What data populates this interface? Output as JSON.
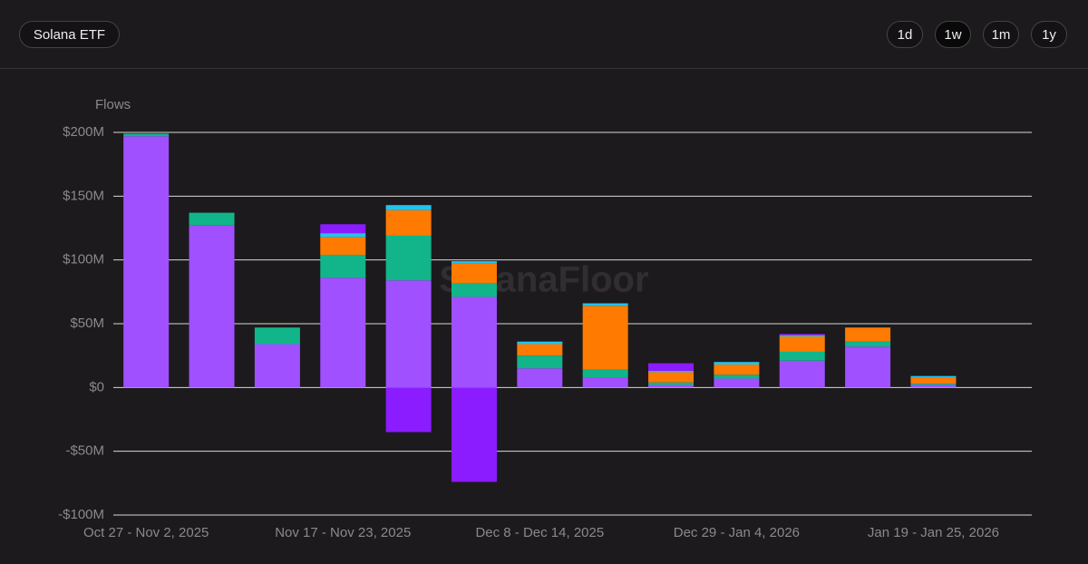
{
  "header": {
    "title": "Solana ETF",
    "ranges": [
      "1d",
      "1w",
      "1m",
      "1y"
    ]
  },
  "chart_data": {
    "type": "bar",
    "stacked": true,
    "ylabel": "Flows",
    "watermark": "SolanaFloor",
    "categories": [
      "Oct 27 - Nov 2, 2025",
      null,
      null,
      "Nov 17 - Nov 23, 2025",
      null,
      null,
      "Dec 8 - Dec 14, 2025",
      null,
      null,
      "Dec 29 - Jan 4, 2026",
      null,
      null,
      "Jan 19 - Jan 25, 2026",
      null
    ],
    "series": [
      {
        "color": "#a050ff",
        "values": [
          197,
          127,
          34,
          86,
          84,
          71,
          15,
          8,
          2,
          7,
          21,
          32,
          2,
          0
        ]
      },
      {
        "color": "#12b589",
        "values": [
          2,
          10,
          13,
          18,
          35,
          11,
          10,
          6,
          2,
          3,
          7,
          4,
          1,
          0
        ]
      },
      {
        "color": "#ff7a00",
        "values": [
          0,
          0,
          0,
          14,
          20,
          15,
          9,
          50,
          8,
          8,
          12,
          11,
          5,
          0
        ]
      },
      {
        "color": "#1ec4f2",
        "values": [
          0,
          0,
          0,
          3,
          4,
          2,
          2,
          2,
          1,
          2,
          1,
          0,
          1,
          0
        ]
      },
      {
        "color": "#8a1cff",
        "values": [
          0,
          0,
          0,
          7,
          -35,
          -74,
          0,
          0,
          6,
          0,
          1,
          0,
          0,
          0
        ]
      }
    ],
    "ylim": [
      -100,
      200
    ],
    "yticks": [
      {
        "value": -100,
        "label": "-$100M"
      },
      {
        "value": -50,
        "label": "-$50M"
      },
      {
        "value": 0,
        "label": "$0"
      },
      {
        "value": 50,
        "label": "$50M"
      },
      {
        "value": 100,
        "label": "$100M"
      },
      {
        "value": 150,
        "label": "$150M"
      },
      {
        "value": 200,
        "label": "$200M"
      }
    ],
    "grid": true
  }
}
